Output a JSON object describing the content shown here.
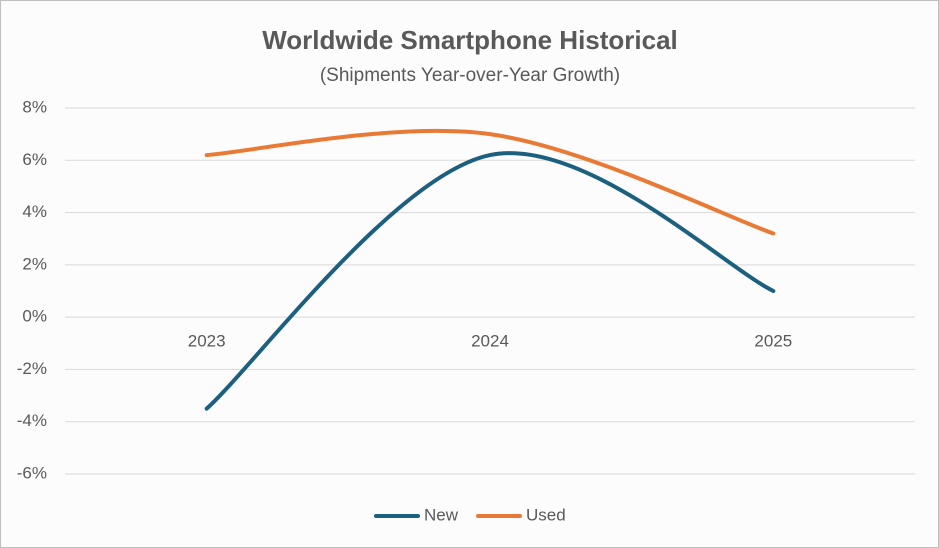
{
  "chart_data": {
    "type": "line",
    "title": "Worldwide Smartphone Historical",
    "subtitle": "(Shipments Year-over-Year Growth)",
    "categories": [
      "2023",
      "2024",
      "2025"
    ],
    "series": [
      {
        "name": "New",
        "color": "#1c5f7f",
        "values": [
          -3.5,
          6.2,
          1.0
        ]
      },
      {
        "name": "Used",
        "color": "#e97a36",
        "values": [
          6.2,
          7.0,
          3.2
        ]
      }
    ],
    "ylim": [
      -6,
      8
    ],
    "yticks": [
      {
        "value": -6,
        "label": "-6%"
      },
      {
        "value": -4,
        "label": "-4%"
      },
      {
        "value": -2,
        "label": "-2%"
      },
      {
        "value": 0,
        "label": "0%"
      },
      {
        "value": 2,
        "label": "2%"
      },
      {
        "value": 4,
        "label": "4%"
      },
      {
        "value": 6,
        "label": "6%"
      },
      {
        "value": 8,
        "label": "8%"
      }
    ],
    "grid": true,
    "smooth": true,
    "legend": "bottom"
  }
}
